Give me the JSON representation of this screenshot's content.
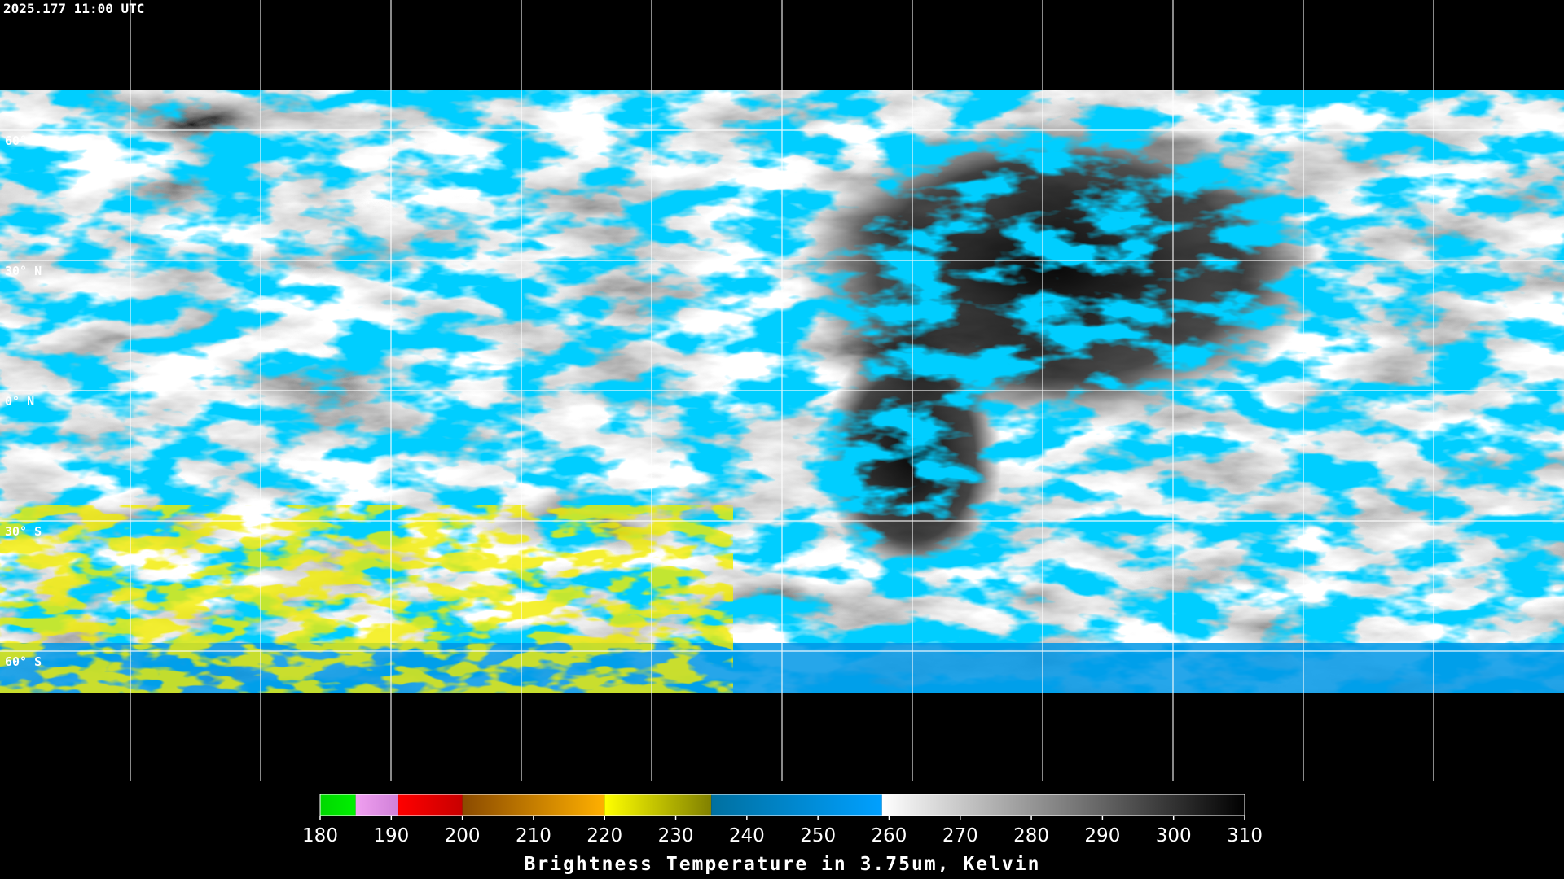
{
  "header": {
    "timestamp": "2025.177 11:00 UTC"
  },
  "map": {
    "latitude_labels": [
      "60° N",
      "30° N",
      "0° N",
      "30° S",
      "60° S"
    ]
  },
  "colorbar": {
    "range": [
      180,
      310
    ],
    "ticks": [
      180,
      190,
      200,
      210,
      220,
      230,
      240,
      250,
      260,
      270,
      280,
      290,
      300,
      310
    ],
    "title": "Brightness Temperature in 3.75um, Kelvin",
    "segments": [
      {
        "from": 180,
        "to": 185,
        "colors": [
          "#00d800",
          "#00f000"
        ]
      },
      {
        "from": 185,
        "to": 191,
        "colors": [
          "#f0a0f0",
          "#d080d8"
        ]
      },
      {
        "from": 191,
        "to": 200,
        "colors": [
          "#ff0000",
          "#c80000"
        ]
      },
      {
        "from": 200,
        "to": 220,
        "colors": [
          "#8a4a00",
          "#ffb000"
        ]
      },
      {
        "from": 220,
        "to": 235,
        "colors": [
          "#ffff00",
          "#808000"
        ]
      },
      {
        "from": 235,
        "to": 259,
        "colors": [
          "#0070a0",
          "#00a0ff"
        ]
      },
      {
        "from": 259,
        "to": 310,
        "colors": [
          "#ffffff",
          "#000000"
        ]
      }
    ]
  }
}
